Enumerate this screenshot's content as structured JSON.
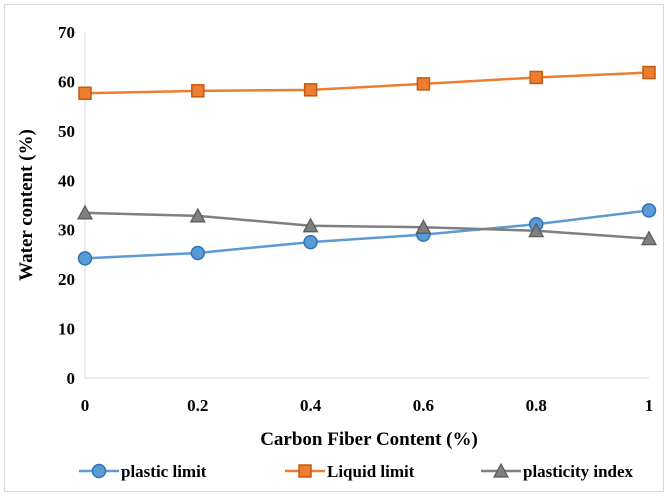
{
  "chart_data": {
    "type": "line",
    "title": "",
    "xlabel": "Carbon Fiber Content  (%)",
    "ylabel": "Water  content  (%)",
    "x": [
      0,
      0.2,
      0.4,
      0.6,
      0.8,
      1
    ],
    "x_tick_labels": [
      "0",
      "0.2",
      "0.4",
      "0.6",
      "0.8",
      "1"
    ],
    "y_tick_labels": [
      "0",
      "10",
      "20",
      "30",
      "40",
      "50",
      "60",
      "70"
    ],
    "xlim": [
      0,
      1
    ],
    "ylim": [
      0,
      70
    ],
    "grid": false,
    "legend_position": "bottom",
    "series": [
      {
        "name": "plastic limit",
        "color": "#5b9bd5",
        "marker": "circle",
        "values": [
          24.2,
          25.3,
          27.5,
          29.0,
          31.1,
          33.9
        ]
      },
      {
        "name": "Liquid limit",
        "color": "#ed7d31",
        "marker": "square",
        "values": [
          57.6,
          58.1,
          58.3,
          59.5,
          60.8,
          61.8
        ]
      },
      {
        "name": "plasticity index",
        "color": "#7f7f7f",
        "marker": "triangle",
        "values": [
          33.4,
          32.8,
          30.8,
          30.5,
          29.8,
          28.2
        ]
      }
    ]
  }
}
